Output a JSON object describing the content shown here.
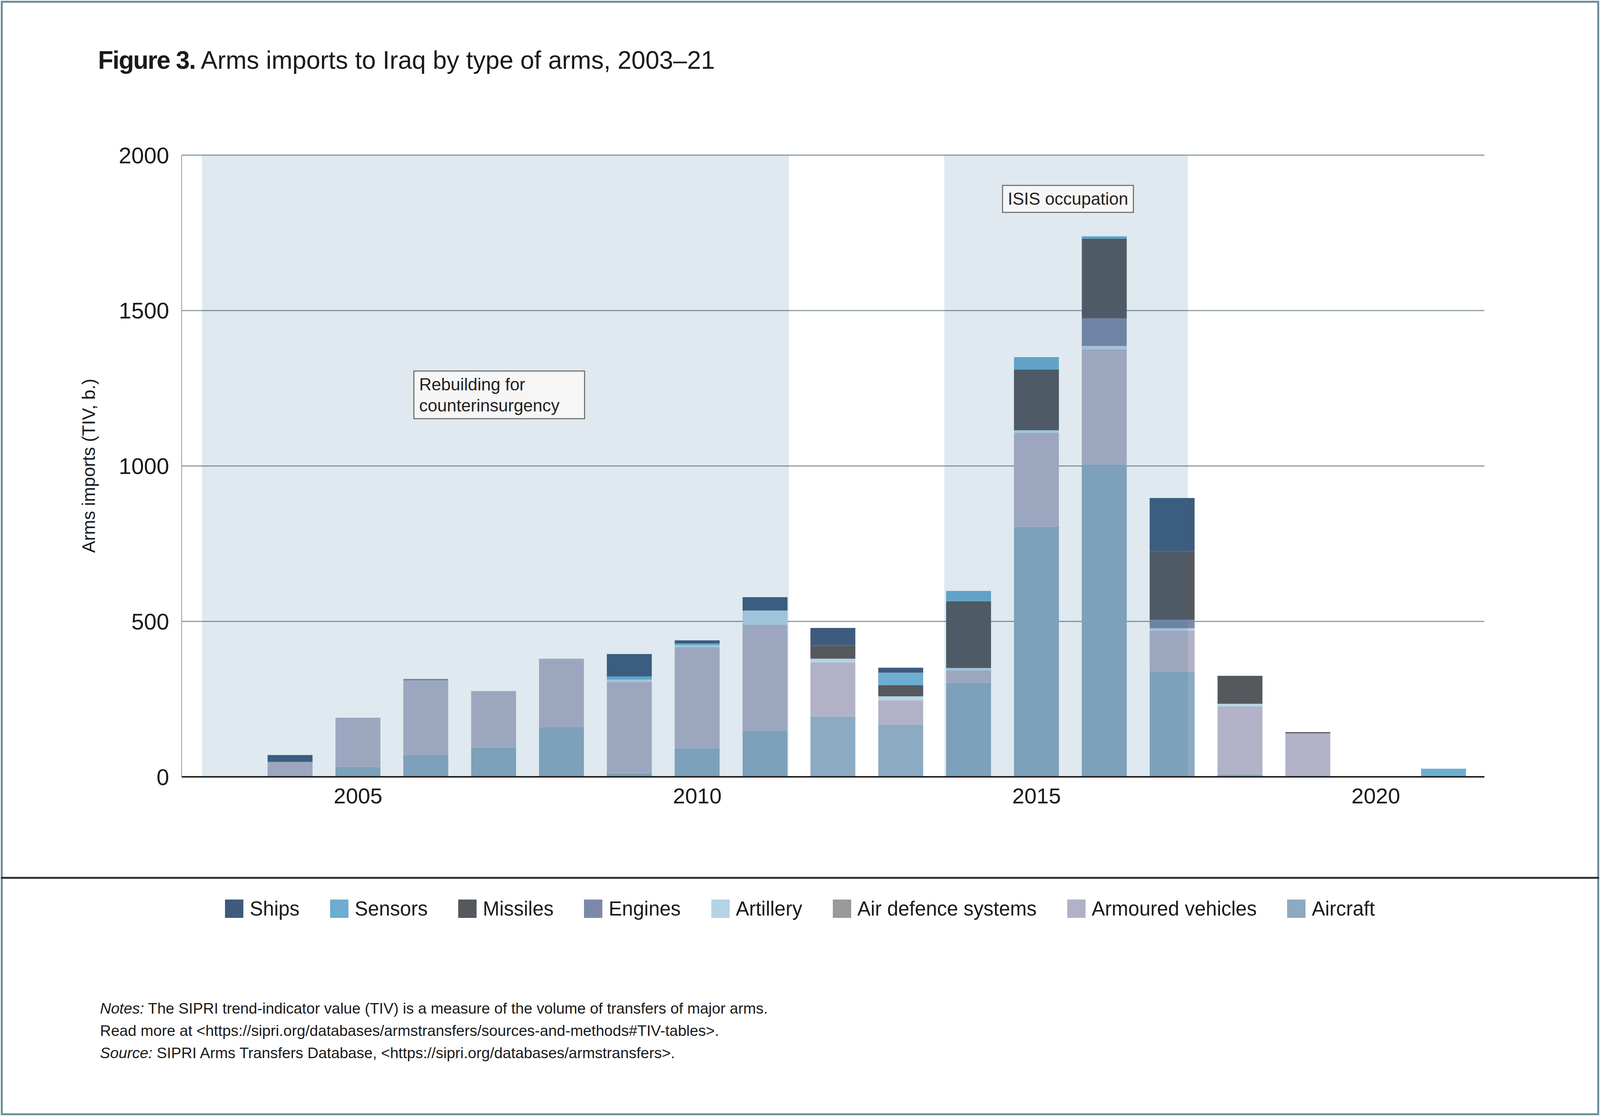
{
  "chart_data": {
    "type": "bar",
    "title_prefix": "Figure 3.",
    "title": "Arms imports to Iraq by type of arms, 2003–21",
    "ylabel": "Arms imports (TIV, b.)",
    "x": [
      2003,
      2004,
      2005,
      2006,
      2007,
      2008,
      2009,
      2010,
      2011,
      2012,
      2013,
      2014,
      2015,
      2016,
      2017,
      2018,
      2019,
      2020,
      2021
    ],
    "xlim": [
      2002.4,
      2021.6
    ],
    "xticks": [
      2005,
      2010,
      2015,
      2020
    ],
    "ylim": [
      0,
      2000
    ],
    "yticks": [
      0,
      500,
      1000,
      1500,
      2000
    ],
    "grid": true,
    "stacked": true,
    "legend": "bottom",
    "series": [
      {
        "name": "Ships",
        "color": "#3e5b7d",
        "values": [
          0,
          22,
          0,
          0,
          0,
          0,
          72,
          10,
          43,
          56,
          16,
          0,
          0,
          0,
          171,
          0,
          0,
          0,
          0
        ]
      },
      {
        "name": "Sensors",
        "color": "#6cadd0",
        "values": [
          0,
          0,
          0,
          0,
          0,
          0,
          10,
          5,
          0,
          0,
          40,
          33,
          40,
          8,
          0,
          0,
          0,
          0,
          26
        ]
      },
      {
        "name": "Missiles",
        "color": "#55595e",
        "values": [
          0,
          0,
          0,
          0,
          0,
          0,
          0,
          0,
          0,
          43,
          36,
          215,
          195,
          256,
          221,
          90,
          4,
          0,
          0
        ]
      },
      {
        "name": "Engines",
        "color": "#7c88a8",
        "values": [
          0,
          0,
          0,
          5,
          0,
          0,
          0,
          0,
          0,
          0,
          0,
          0,
          0,
          89,
          27,
          0,
          0,
          0,
          0
        ]
      },
      {
        "name": "Artillery",
        "color": "#b4d4e6",
        "values": [
          0,
          0,
          0,
          0,
          0,
          0,
          8,
          7,
          46,
          12,
          13,
          8,
          8,
          10,
          8,
          8,
          0,
          0,
          0
        ]
      },
      {
        "name": "Air defence systems",
        "color": "#9a9a9a",
        "values": [
          0,
          0,
          0,
          0,
          0,
          0,
          0,
          0,
          0,
          0,
          0,
          0,
          0,
          0,
          0,
          0,
          0,
          0,
          0
        ]
      },
      {
        "name": "Armoured vehicles",
        "color": "#b1b2c7",
        "values": [
          0,
          48,
          158,
          240,
          181,
          220,
          293,
          325,
          341,
          174,
          78,
          40,
          302,
          371,
          132,
          219,
          140,
          0,
          0
        ]
      },
      {
        "name": "Aircraft",
        "color": "#8caac2",
        "values": [
          0,
          0,
          32,
          70,
          95,
          160,
          12,
          92,
          148,
          194,
          168,
          302,
          805,
          1005,
          338,
          8,
          0,
          0,
          0
        ]
      }
    ],
    "annotations": [
      {
        "text": "Rebuilding for counterinsurgency",
        "x_range": [
          2002.7,
          2011.35
        ]
      },
      {
        "text": "ISIS occupation",
        "x_range": [
          2013.64,
          2017.23
        ]
      }
    ],
    "notes": {
      "label": "Notes:",
      "lines": [
        "The SIPRI trend-indicator value (TIV) is a measure of the volume of transfers of major arms.",
        "Read more at <https://sipri.org/databases/armstransfers/sources-and-methods#TIV-tables>."
      ]
    },
    "source": {
      "label": "Source:",
      "text": "SIPRI Arms Transfers Database, <https://sipri.org/databases/armstransfers>."
    }
  }
}
